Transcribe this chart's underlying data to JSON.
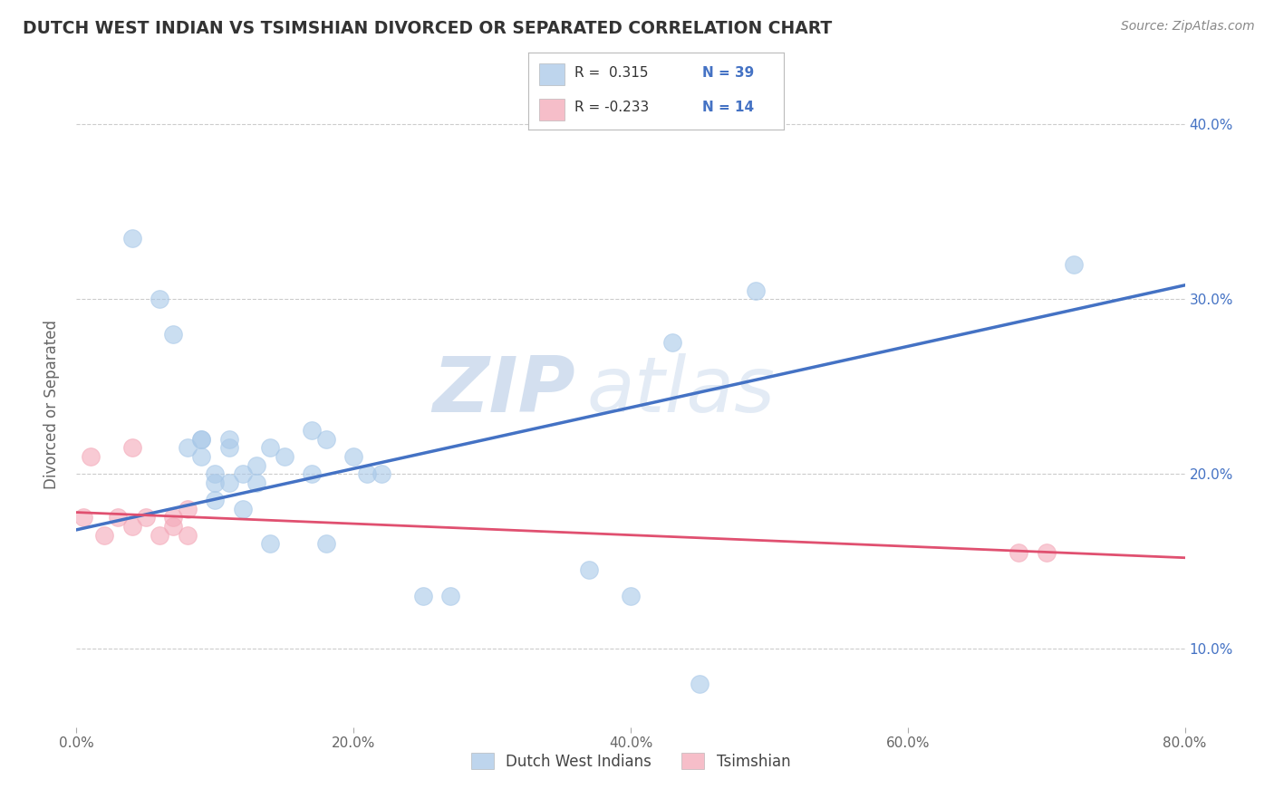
{
  "title": "DUTCH WEST INDIAN VS TSIMSHIAN DIVORCED OR SEPARATED CORRELATION CHART",
  "source": "Source: ZipAtlas.com",
  "ylabel": "Divorced or Separated",
  "watermark_zip": "ZIP",
  "watermark_atlas": "atlas",
  "legend_blue_label": "R =  0.315   N = 39",
  "legend_blue_r_text": "R =  0.315",
  "legend_blue_n_text": "N = 39",
  "legend_pink_r_text": "R = -0.233",
  "legend_pink_n_text": "N = 14",
  "x_tick_labels": [
    "0.0%",
    "",
    "",
    "",
    "",
    "20.0%",
    "",
    "",
    "",
    "",
    "40.0%",
    "",
    "",
    "",
    "",
    "60.0%",
    "",
    "",
    "",
    "",
    "80.0%"
  ],
  "x_ticks": [
    0.0,
    0.04,
    0.08,
    0.12,
    0.16,
    0.2,
    0.24,
    0.28,
    0.32,
    0.36,
    0.4,
    0.44,
    0.48,
    0.52,
    0.56,
    0.6,
    0.64,
    0.68,
    0.72,
    0.76,
    0.8
  ],
  "y_tick_labels": [
    "10.0%",
    "20.0%",
    "30.0%",
    "40.0%"
  ],
  "x_min": 0.0,
  "x_max": 0.8,
  "y_min": 0.055,
  "y_max": 0.425,
  "blue_scatter_x": [
    0.04,
    0.06,
    0.07,
    0.08,
    0.09,
    0.09,
    0.09,
    0.1,
    0.1,
    0.1,
    0.11,
    0.11,
    0.11,
    0.12,
    0.12,
    0.13,
    0.13,
    0.14,
    0.14,
    0.15,
    0.17,
    0.17,
    0.18,
    0.18,
    0.2,
    0.21,
    0.22,
    0.25,
    0.27,
    0.37,
    0.4,
    0.43,
    0.45,
    0.49,
    0.72
  ],
  "blue_scatter_y": [
    0.335,
    0.3,
    0.28,
    0.215,
    0.22,
    0.21,
    0.22,
    0.2,
    0.195,
    0.185,
    0.215,
    0.195,
    0.22,
    0.18,
    0.2,
    0.195,
    0.205,
    0.215,
    0.16,
    0.21,
    0.2,
    0.225,
    0.22,
    0.16,
    0.21,
    0.2,
    0.2,
    0.13,
    0.13,
    0.145,
    0.13,
    0.275,
    0.08,
    0.305,
    0.32
  ],
  "pink_scatter_x": [
    0.005,
    0.01,
    0.02,
    0.03,
    0.04,
    0.04,
    0.05,
    0.06,
    0.07,
    0.07,
    0.08,
    0.08,
    0.68,
    0.7
  ],
  "pink_scatter_y": [
    0.175,
    0.21,
    0.165,
    0.175,
    0.17,
    0.215,
    0.175,
    0.165,
    0.17,
    0.175,
    0.165,
    0.18,
    0.155,
    0.155
  ],
  "blue_line_x": [
    0.0,
    0.8
  ],
  "blue_line_y_start": 0.168,
  "blue_line_y_end": 0.308,
  "pink_line_x": [
    0.0,
    0.8
  ],
  "pink_line_y_start": 0.178,
  "pink_line_y_end": 0.152,
  "blue_color": "#a8c8e8",
  "pink_color": "#f4a8b8",
  "blue_line_color": "#4472c4",
  "pink_line_color": "#e05070",
  "scatter_alpha": 0.6,
  "scatter_size": 200,
  "legend_items": [
    "Dutch West Indians",
    "Tsimshian"
  ],
  "background_color": "#ffffff",
  "grid_color": "#cccccc"
}
